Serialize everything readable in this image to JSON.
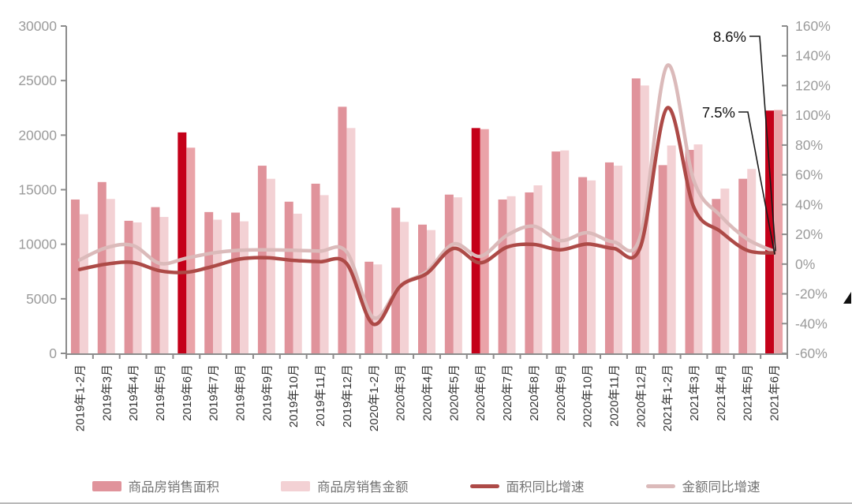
{
  "chart_data": {
    "type": "bar-line-combo",
    "title": "",
    "grid": false,
    "legend_position": "bottom",
    "categories": [
      "2019年1-2月",
      "2019年3月",
      "2019年4月",
      "2019年5月",
      "2019年6月",
      "2019年7月",
      "2019年8月",
      "2019年9月",
      "2019年10月",
      "2019年11月",
      "2019年12月",
      "2020年1-2月",
      "2020年3月",
      "2020年4月",
      "2020年5月",
      "2020年6月",
      "2020年7月",
      "2020年8月",
      "2020年9月",
      "2020年10月",
      "2020年11月",
      "2020年12月",
      "2021年1-2月",
      "2021年3月",
      "2021年4月",
      "2021年5月",
      "2021年6月"
    ],
    "series": [
      {
        "name": "商品房销售面积",
        "type": "bar",
        "axis": "left",
        "color": "#e0939b",
        "highlight_color": "#c40019",
        "values": [
          14100,
          15700,
          12150,
          13400,
          20250,
          12950,
          12900,
          17200,
          13900,
          15550,
          22600,
          8400,
          13350,
          11800,
          14550,
          20650,
          14100,
          14750,
          18500,
          16150,
          17500,
          25200,
          17250,
          18650,
          14150,
          16000,
          22250
        ]
      },
      {
        "name": "商品房销售金额",
        "type": "bar",
        "axis": "left",
        "color": "#f3d1d4",
        "highlight_color": "#eaa3a8",
        "values": [
          12750,
          14150,
          12000,
          12500,
          18850,
          12250,
          12100,
          16000,
          12800,
          14500,
          20650,
          8150,
          12050,
          11300,
          14300,
          20550,
          14400,
          15400,
          18600,
          15850,
          17200,
          24550,
          19050,
          19150,
          15100,
          16900,
          22300
        ]
      },
      {
        "name": "面积同比增速",
        "type": "line",
        "axis": "right",
        "color": "#ad4a47",
        "values": [
          -3.6,
          0.0,
          1.1,
          -4.5,
          -5.5,
          -1.5,
          3.4,
          4.3,
          2.5,
          1.6,
          0.3,
          -40.4,
          -15.0,
          -6.3,
          10.5,
          0.8,
          11.4,
          13.2,
          9.6,
          13.5,
          10.5,
          11.5,
          104.9,
          38.1,
          21.9,
          9.2,
          7.5
        ]
      },
      {
        "name": "金额同比增速",
        "type": "line",
        "axis": "right",
        "color": "#dbbaba",
        "values": [
          2.8,
          11.0,
          12.5,
          0.5,
          4.0,
          7.5,
          9.3,
          9.6,
          9.3,
          8.7,
          8.2,
          -35.9,
          -14.6,
          -5.0,
          13.5,
          5.2,
          19.3,
          25.5,
          15.8,
          21.1,
          14.9,
          18.9,
          133.4,
          56.1,
          32.5,
          16.8,
          8.6
        ]
      }
    ],
    "highlight_indices": [
      4,
      15,
      26
    ],
    "left_axis": {
      "min": 0,
      "max": 30000,
      "tick_labels": [
        "30000",
        "25000",
        "20000",
        "15000",
        "10000",
        "5000",
        "0"
      ]
    },
    "right_axis": {
      "min": -60,
      "max": 160,
      "tick_labels": [
        "160%",
        "140%",
        "120%",
        "100%",
        "80%",
        "60%",
        "40%",
        "20%",
        "0%",
        "-20%",
        "-40%",
        "-60%"
      ]
    },
    "annotations": [
      {
        "text": "8.6%",
        "series_index": 3,
        "category_index": 26,
        "value": 8.6
      },
      {
        "text": "7.5%",
        "series_index": 2,
        "category_index": 26,
        "value": 7.5
      }
    ]
  }
}
